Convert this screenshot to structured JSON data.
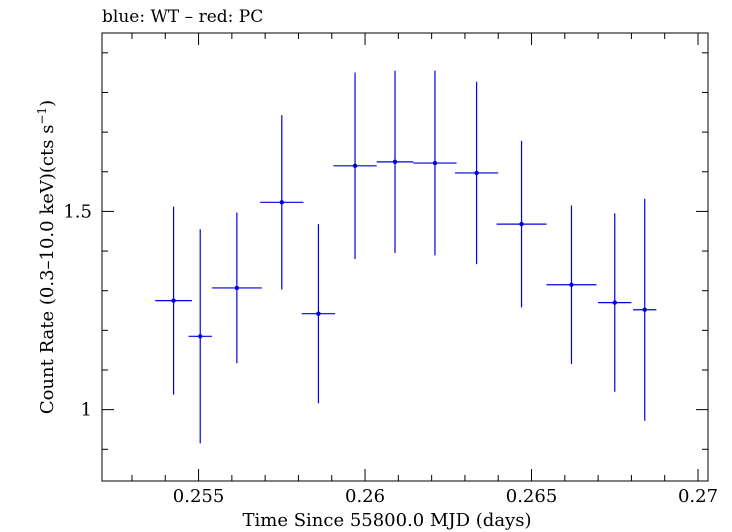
{
  "chart_data": {
    "type": "scatter",
    "title": "blue: WT – red: PC",
    "xlabel": "Time Since 55800.0 MJD (days)",
    "ylabel_main": "Count Rate (0.3–10.0 keV)(cts s",
    "ylabel_sup": "−1",
    "ylabel_close": ")",
    "xlim": [
      0.2521,
      0.2703
    ],
    "ylim": [
      0.82,
      1.95
    ],
    "x_ticks": [
      {
        "value": 0.255,
        "label": "0.255"
      },
      {
        "value": 0.26,
        "label": "0.26"
      },
      {
        "value": 0.265,
        "label": "0.265"
      },
      {
        "value": 0.27,
        "label": "0.27"
      }
    ],
    "y_ticks": [
      {
        "value": 1.0,
        "label": "1"
      },
      {
        "value": 1.5,
        "label": "1.5"
      }
    ],
    "series": [
      {
        "name": "WT",
        "color": "#0000e0",
        "points": [
          {
            "x": 0.25425,
            "y": 1.275,
            "xerr": 0.00055,
            "yerr_lo": 0.237,
            "yerr_hi": 0.237
          },
          {
            "x": 0.25505,
            "y": 1.185,
            "xerr": 0.00035,
            "yerr_lo": 0.27,
            "yerr_hi": 0.27
          },
          {
            "x": 0.25615,
            "y": 1.307,
            "xerr": 0.00075,
            "yerr_lo": 0.19,
            "yerr_hi": 0.19
          },
          {
            "x": 0.2575,
            "y": 1.523,
            "xerr": 0.00065,
            "yerr_lo": 0.22,
            "yerr_hi": 0.22
          },
          {
            "x": 0.2586,
            "y": 1.242,
            "xerr": 0.0005,
            "yerr_lo": 0.226,
            "yerr_hi": 0.226
          },
          {
            "x": 0.2597,
            "y": 1.615,
            "xerr": 0.00065,
            "yerr_lo": 0.235,
            "yerr_hi": 0.235
          },
          {
            "x": 0.2609,
            "y": 1.625,
            "xerr": 0.00055,
            "yerr_lo": 0.23,
            "yerr_hi": 0.23
          },
          {
            "x": 0.2621,
            "y": 1.622,
            "xerr": 0.00065,
            "yerr_lo": 0.233,
            "yerr_hi": 0.233
          },
          {
            "x": 0.26335,
            "y": 1.597,
            "xerr": 0.00065,
            "yerr_lo": 0.23,
            "yerr_hi": 0.23
          },
          {
            "x": 0.2647,
            "y": 1.468,
            "xerr": 0.00075,
            "yerr_lo": 0.21,
            "yerr_hi": 0.21
          },
          {
            "x": 0.2662,
            "y": 1.315,
            "xerr": 0.00075,
            "yerr_lo": 0.2,
            "yerr_hi": 0.2
          },
          {
            "x": 0.2675,
            "y": 1.27,
            "xerr": 0.0005,
            "yerr_lo": 0.225,
            "yerr_hi": 0.225
          },
          {
            "x": 0.2684,
            "y": 1.252,
            "xerr": 0.00035,
            "yerr_lo": 0.28,
            "yerr_hi": 0.28
          }
        ]
      }
    ]
  }
}
